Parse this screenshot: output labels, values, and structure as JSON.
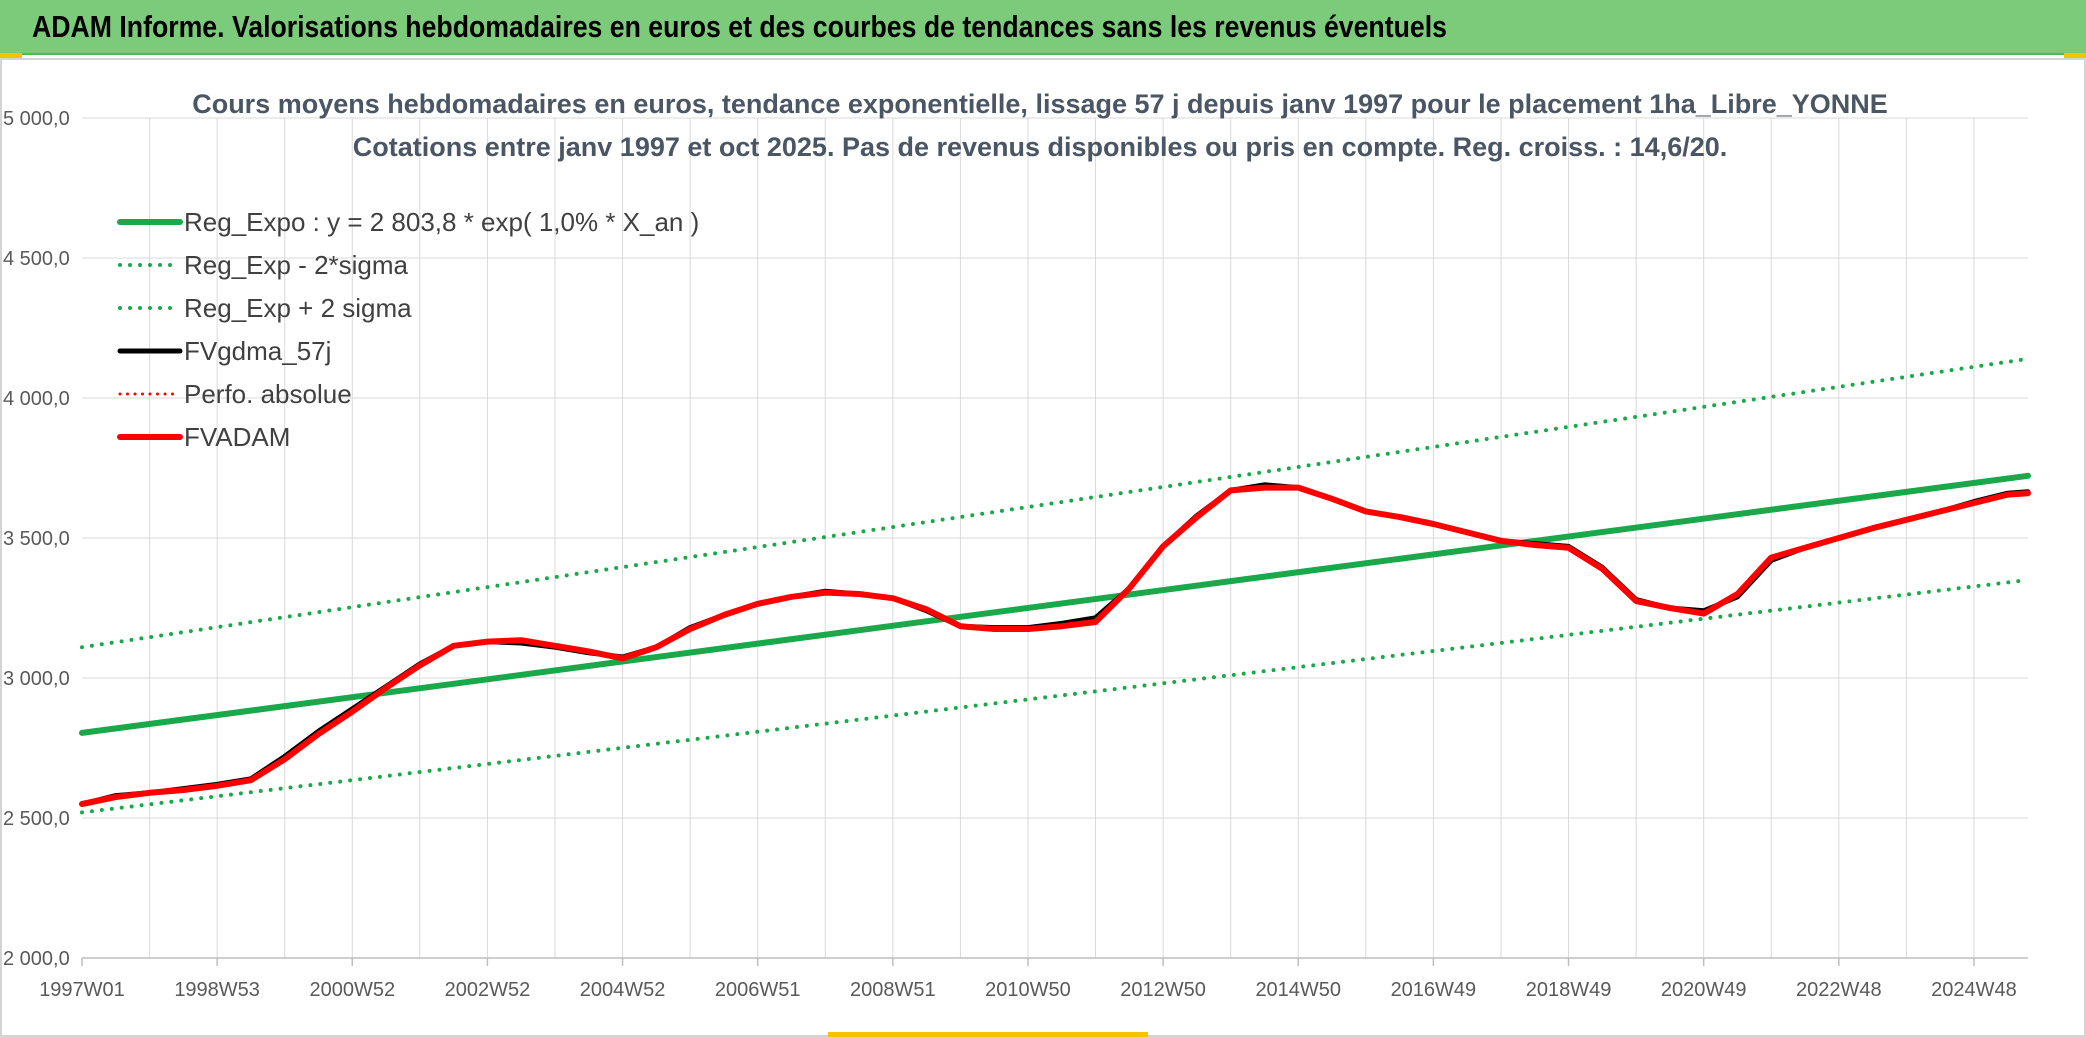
{
  "banner": {
    "title": "ADAM Informe. Valorisations hebdomadaires en euros et des courbes de tendances sans les revenus éventuels",
    "background": "#7ccb7a"
  },
  "chart_data": {
    "type": "line",
    "title": "Cours moyens hebdomadaires en euros, tendance exponentielle, lissage 57 j depuis janv 1997 pour le placement 1ha_Libre_YONNE",
    "subtitle": "Cotations entre janv 1997 et oct 2025. Pas de revenus disponibles ou pris en compte. Reg. croiss. : 14,6/20.",
    "xlabel": "",
    "ylabel": "",
    "ylim": [
      2000,
      5000
    ],
    "xlim": [
      1997.0,
      2025.8
    ],
    "y_ticks": [
      {
        "value": 2000,
        "label": "2 000,0"
      },
      {
        "value": 2500,
        "label": "2 500,0"
      },
      {
        "value": 3000,
        "label": "3 000,0"
      },
      {
        "value": 3500,
        "label": "3 500,0"
      },
      {
        "value": 4000,
        "label": "4 000,0"
      },
      {
        "value": 4500,
        "label": "4 500,0"
      },
      {
        "value": 5000,
        "label": "5 000,0"
      }
    ],
    "x_ticks": [
      {
        "value": 1997.0,
        "label": "1997W01"
      },
      {
        "value": 1999.0,
        "label": "1998W53"
      },
      {
        "value": 2001.0,
        "label": "2000W52"
      },
      {
        "value": 2003.0,
        "label": "2002W52"
      },
      {
        "value": 2005.0,
        "label": "2004W52"
      },
      {
        "value": 2007.0,
        "label": "2006W51"
      },
      {
        "value": 2009.0,
        "label": "2008W51"
      },
      {
        "value": 2011.0,
        "label": "2010W50"
      },
      {
        "value": 2013.0,
        "label": "2012W50"
      },
      {
        "value": 2015.0,
        "label": "2014W50"
      },
      {
        "value": 2017.0,
        "label": "2016W49"
      },
      {
        "value": 2019.0,
        "label": "2018W49"
      },
      {
        "value": 2021.0,
        "label": "2020W49"
      },
      {
        "value": 2023.0,
        "label": "2022W48"
      },
      {
        "value": 2025.0,
        "label": "2024W48"
      }
    ],
    "x_minor_grid_step": 1,
    "grid": true,
    "legend_position": "top-left",
    "series": [
      {
        "name": "Reg_Expo : y = 2 803,8 * exp( 1,0% *  X_an )",
        "color": "#1aa84a",
        "style": "solid",
        "width": 6,
        "x": [
          1997.0,
          2025.8
        ],
        "values": [
          2803.8,
          3722
        ]
      },
      {
        "name": "Reg_Exp - 2*sigma",
        "color": "#1aa84a",
        "style": "dotted",
        "width": 4,
        "x": [
          1997.0,
          2025.8
        ],
        "values": [
          2520,
          3350
        ]
      },
      {
        "name": "Reg_Exp + 2 sigma",
        "color": "#1aa84a",
        "style": "dotted",
        "width": 4,
        "x": [
          1997.0,
          2025.8
        ],
        "values": [
          3110,
          4140
        ]
      },
      {
        "name": "FVgdma_57j",
        "color": "#000000",
        "style": "solid",
        "width": 5,
        "x": [
          1997.0,
          1997.5,
          1998.0,
          1998.5,
          1999.0,
          1999.5,
          2000.0,
          2000.5,
          2001.0,
          2001.5,
          2002.0,
          2002.5,
          2003.0,
          2003.5,
          2004.0,
          2004.5,
          2005.0,
          2005.5,
          2006.0,
          2006.5,
          2007.0,
          2007.5,
          2008.0,
          2008.5,
          2009.0,
          2009.5,
          2010.0,
          2010.5,
          2011.0,
          2011.5,
          2012.0,
          2012.5,
          2013.0,
          2013.5,
          2014.0,
          2014.5,
          2015.0,
          2015.5,
          2016.0,
          2016.5,
          2017.0,
          2017.5,
          2018.0,
          2018.5,
          2019.0,
          2019.5,
          2020.0,
          2020.5,
          2021.0,
          2021.5,
          2022.0,
          2022.5,
          2023.0,
          2023.5,
          2024.0,
          2024.5,
          2025.0,
          2025.5,
          2025.8
        ],
        "values": [
          2550,
          2580,
          2590,
          2605,
          2620,
          2640,
          2720,
          2810,
          2890,
          2970,
          3050,
          3115,
          3130,
          3125,
          3110,
          3090,
          3075,
          3110,
          3180,
          3225,
          3265,
          3290,
          3310,
          3300,
          3285,
          3240,
          3185,
          3180,
          3180,
          3195,
          3215,
          3320,
          3470,
          3580,
          3670,
          3690,
          3680,
          3640,
          3595,
          3575,
          3550,
          3520,
          3490,
          3480,
          3470,
          3395,
          3280,
          3250,
          3240,
          3290,
          3420,
          3465,
          3500,
          3535,
          3565,
          3595,
          3630,
          3660,
          3665
        ]
      },
      {
        "name": "Perfo. absolue",
        "color": "#ff0000",
        "style": "dotted",
        "width": 3,
        "x": [],
        "values": []
      },
      {
        "name": "FVADAM",
        "color": "#ff0000",
        "style": "solid",
        "width": 6,
        "x": [
          1997.0,
          1997.5,
          1998.0,
          1998.5,
          1999.0,
          1999.5,
          2000.0,
          2000.5,
          2001.0,
          2001.5,
          2002.0,
          2002.5,
          2003.0,
          2003.5,
          2004.0,
          2004.5,
          2005.0,
          2005.5,
          2006.0,
          2006.5,
          2007.0,
          2007.5,
          2008.0,
          2008.5,
          2009.0,
          2009.5,
          2010.0,
          2010.5,
          2011.0,
          2011.5,
          2012.0,
          2012.5,
          2013.0,
          2013.5,
          2014.0,
          2014.5,
          2015.0,
          2015.5,
          2016.0,
          2016.5,
          2017.0,
          2017.5,
          2018.0,
          2018.5,
          2019.0,
          2019.5,
          2020.0,
          2020.5,
          2021.0,
          2021.5,
          2022.0,
          2022.5,
          2023.0,
          2023.5,
          2024.0,
          2024.5,
          2025.0,
          2025.5,
          2025.8
        ],
        "values": [
          2550,
          2575,
          2590,
          2600,
          2615,
          2635,
          2710,
          2800,
          2880,
          2965,
          3045,
          3115,
          3130,
          3135,
          3115,
          3095,
          3070,
          3110,
          3175,
          3225,
          3265,
          3290,
          3305,
          3300,
          3285,
          3245,
          3185,
          3175,
          3175,
          3185,
          3200,
          3320,
          3470,
          3575,
          3670,
          3680,
          3680,
          3640,
          3595,
          3575,
          3550,
          3520,
          3490,
          3475,
          3465,
          3390,
          3275,
          3250,
          3230,
          3300,
          3430,
          3465,
          3500,
          3535,
          3565,
          3595,
          3625,
          3655,
          3660
        ]
      }
    ]
  }
}
